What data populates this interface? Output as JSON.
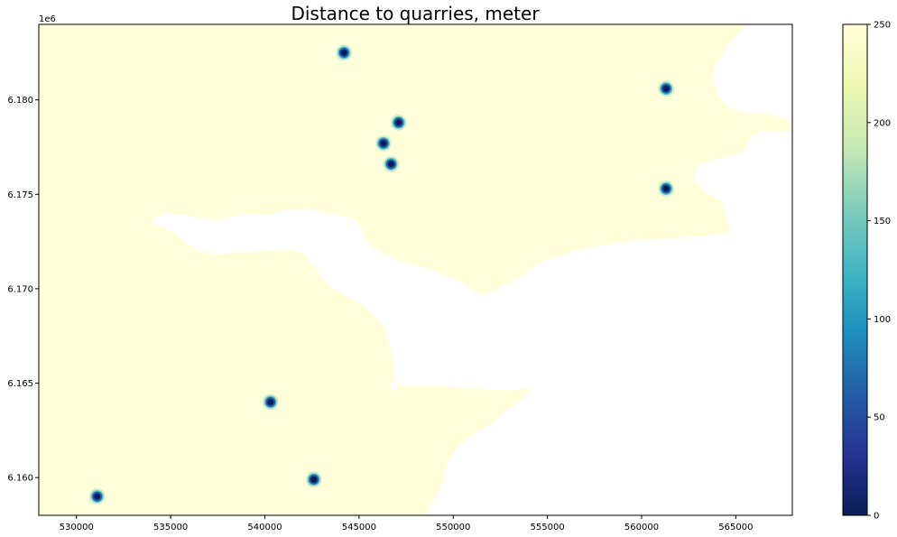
{
  "chart_data": {
    "type": "heatmap",
    "title": "Distance to quarries, meter",
    "xlabel": "",
    "ylabel": "",
    "y_offset_label": "1e6",
    "xlim": [
      528000,
      568000
    ],
    "ylim": [
      6158000,
      6184000
    ],
    "x_ticks": [
      530000,
      535000,
      540000,
      545000,
      550000,
      555000,
      560000,
      565000
    ],
    "x_tick_labels": [
      "530000",
      "535000",
      "540000",
      "545000",
      "550000",
      "555000",
      "560000",
      "565000"
    ],
    "y_ticks": [
      6160000,
      6165000,
      6170000,
      6175000,
      6180000
    ],
    "y_tick_labels": [
      "6.160",
      "6.165",
      "6.170",
      "6.175",
      "6.180"
    ],
    "grid": false,
    "colormap": "YlGnBu_r",
    "background_value": 250,
    "land_color": "#ffffd9",
    "nodata_color": "#ffffff",
    "colorbar": {
      "min": 0,
      "max": 250,
      "ticks": [
        0,
        50,
        100,
        150,
        200,
        250
      ],
      "tick_labels": [
        "0",
        "50",
        "100",
        "150",
        "200",
        "250"
      ],
      "colors": [
        "#081d58",
        "#253494",
        "#225ea8",
        "#1d91c0",
        "#41b6c4",
        "#7fcdbb",
        "#c7e9b4",
        "#edf8b1",
        "#ffffd9"
      ]
    },
    "quarries": [
      {
        "x": 544200,
        "y": 6182500,
        "distance": 0
      },
      {
        "x": 561300,
        "y": 6180600,
        "distance": 0
      },
      {
        "x": 547100,
        "y": 6178800,
        "distance": 0
      },
      {
        "x": 546300,
        "y": 6177700,
        "distance": 0
      },
      {
        "x": 546700,
        "y": 6176600,
        "distance": 0
      },
      {
        "x": 561300,
        "y": 6175300,
        "distance": 0
      },
      {
        "x": 540300,
        "y": 6164000,
        "distance": 0
      },
      {
        "x": 542600,
        "y": 6159900,
        "distance": 0
      },
      {
        "x": 531100,
        "y": 6159000,
        "distance": 0
      }
    ]
  }
}
